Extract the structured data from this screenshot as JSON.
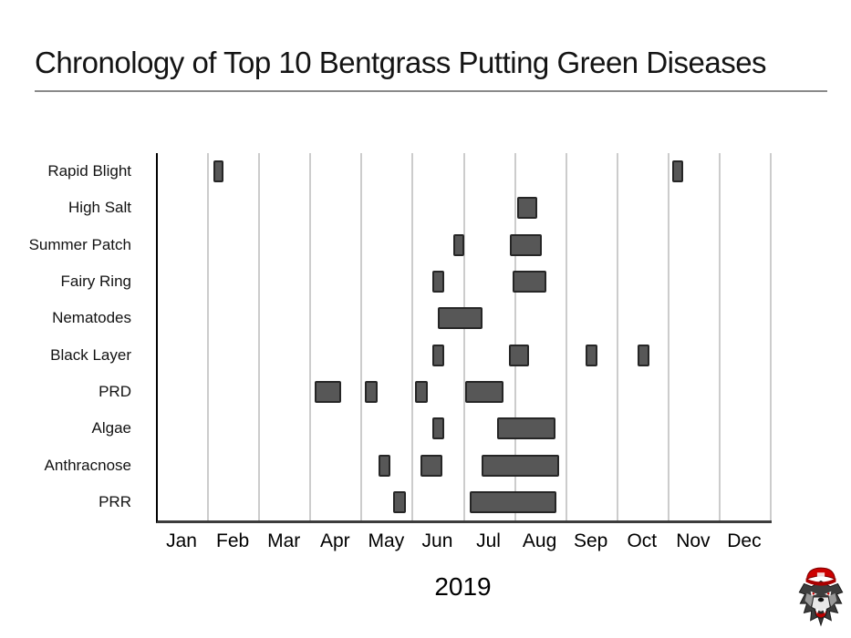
{
  "title": "Chronology of Top 10 Bentgrass Putting Green Diseases",
  "year_label": "2019",
  "colors": {
    "bar_fill": "#575757",
    "bar_border": "#262626",
    "gridline": "#cccccc",
    "axis": "#000000",
    "title_rule": "#8a8a8a",
    "logo_cap": "#cc0000"
  },
  "logo": {
    "name": "nc-state-wolfpack-wolf-logo"
  },
  "chart_data": {
    "type": "gantt",
    "title": "Chronology of Top 10 Bentgrass Putting Green Diseases",
    "xlabel": "2019",
    "bar_units": "months, 0 = Jan 1, 12 = Dec 31",
    "grid": true,
    "x_axis": {
      "tick_labels": [
        "Jan",
        "Feb",
        "Mar",
        "Apr",
        "May",
        "Jun",
        "Jul",
        "Aug",
        "Sep",
        "Oct",
        "Nov",
        "Dec"
      ],
      "range_months": [
        0,
        12
      ]
    },
    "rows": [
      {
        "label": "Rapid Blight",
        "bars": [
          [
            1.09,
            1.28
          ],
          [
            10.06,
            10.27
          ]
        ]
      },
      {
        "label": "High Salt",
        "bars": [
          [
            7.03,
            7.42
          ]
        ]
      },
      {
        "label": "Summer Patch",
        "bars": [
          [
            5.78,
            5.99
          ],
          [
            6.88,
            7.51
          ]
        ]
      },
      {
        "label": "Fairy Ring",
        "bars": [
          [
            5.37,
            5.6
          ],
          [
            6.94,
            7.6
          ]
        ]
      },
      {
        "label": "Nematodes",
        "bars": [
          [
            5.47,
            6.35
          ]
        ]
      },
      {
        "label": "Black Layer",
        "bars": [
          [
            5.37,
            5.6
          ],
          [
            6.87,
            7.26
          ],
          [
            8.36,
            8.6
          ],
          [
            9.38,
            9.61
          ]
        ]
      },
      {
        "label": "PRD",
        "bars": [
          [
            3.07,
            3.58
          ],
          [
            4.05,
            4.3
          ],
          [
            5.03,
            5.28
          ],
          [
            6.01,
            6.76
          ]
        ]
      },
      {
        "label": "Algae",
        "bars": [
          [
            5.37,
            5.6
          ],
          [
            6.63,
            7.77
          ]
        ]
      },
      {
        "label": "Anthracnose",
        "bars": [
          [
            4.32,
            4.55
          ],
          [
            5.14,
            5.56
          ],
          [
            6.33,
            7.85
          ]
        ]
      },
      {
        "label": "PRR",
        "bars": [
          [
            4.6,
            4.85
          ],
          [
            6.1,
            7.79
          ]
        ]
      }
    ]
  }
}
